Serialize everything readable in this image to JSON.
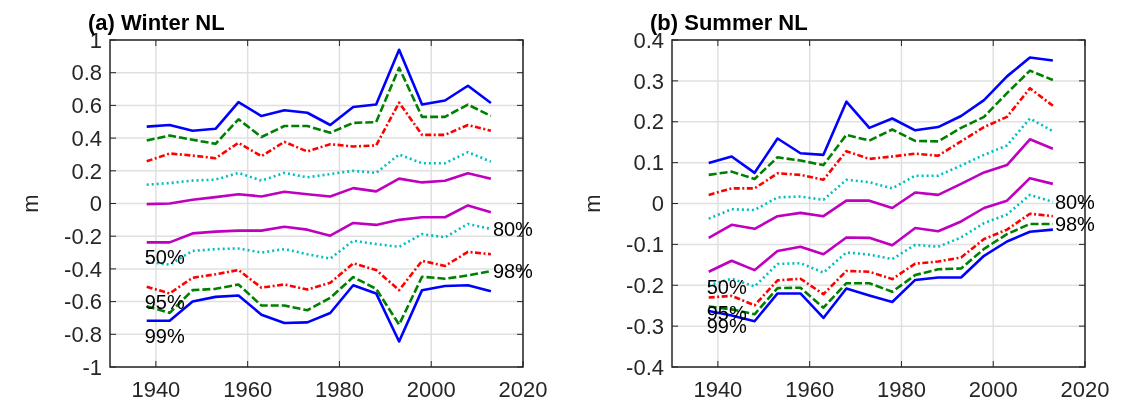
{
  "chart_data": [
    {
      "type": "line",
      "title": "(a) Winter NL",
      "ylabel": "m",
      "x": [
        1938,
        1943,
        1948,
        1953,
        1958,
        1963,
        1968,
        1973,
        1978,
        1983,
        1988,
        1993,
        1998,
        2003,
        2008,
        2013
      ],
      "xlim": [
        1930,
        2020
      ],
      "xticks": [
        1940,
        1960,
        1980,
        2000,
        2020
      ],
      "ylim": [
        -1,
        1
      ],
      "yticks": [
        -1,
        -0.8,
        -0.6,
        -0.4,
        -0.2,
        0,
        0.2,
        0.4,
        0.6,
        0.8,
        1
      ],
      "grid": true,
      "series": [
        {
          "color": "#0000ff",
          "line_style": "solid",
          "values": [
            0.47,
            0.48,
            0.445,
            0.457,
            0.62,
            0.535,
            0.57,
            0.555,
            0.48,
            0.59,
            0.605,
            0.94,
            0.605,
            0.63,
            0.72,
            0.615
          ]
        },
        {
          "color": "#008000",
          "line_style": "dashed",
          "values": [
            0.385,
            0.416,
            0.39,
            0.365,
            0.515,
            0.407,
            0.474,
            0.474,
            0.433,
            0.493,
            0.498,
            0.83,
            0.53,
            0.53,
            0.605,
            0.535
          ]
        },
        {
          "color": "#ff0000",
          "line_style": "dashdot",
          "values": [
            0.258,
            0.306,
            0.293,
            0.277,
            0.371,
            0.289,
            0.377,
            0.318,
            0.363,
            0.349,
            0.355,
            0.617,
            0.42,
            0.42,
            0.48,
            0.445
          ]
        },
        {
          "color": "#00bfbf",
          "line_style": "dotted",
          "values": [
            0.115,
            0.125,
            0.14,
            0.146,
            0.187,
            0.14,
            0.187,
            0.16,
            0.18,
            0.2,
            0.187,
            0.3,
            0.246,
            0.246,
            0.314,
            0.256
          ]
        },
        {
          "color": "#bf00bf",
          "line_style": "solid",
          "values": [
            -0.004,
            0,
            0.023,
            0.039,
            0.057,
            0.043,
            0.072,
            0.057,
            0.043,
            0.094,
            0.074,
            0.152,
            0.129,
            0.139,
            0.185,
            0.152
          ]
        },
        {
          "name": "50%",
          "color": "#bf00bf",
          "line_style": "solid",
          "values": [
            -0.238,
            -0.238,
            -0.183,
            -0.172,
            -0.166,
            -0.166,
            -0.142,
            -0.16,
            -0.197,
            -0.119,
            -0.131,
            -0.1,
            -0.084,
            -0.084,
            -0.012,
            -0.053
          ]
        },
        {
          "name": "80%",
          "color": "#00bfbf",
          "line_style": "dotted",
          "values": [
            -0.357,
            -0.374,
            -0.29,
            -0.279,
            -0.275,
            -0.3,
            -0.279,
            -0.31,
            -0.337,
            -0.228,
            -0.248,
            -0.265,
            -0.187,
            -0.207,
            -0.125,
            -0.156
          ]
        },
        {
          "name": "95%",
          "color": "#ff0000",
          "line_style": "dashdot",
          "values": [
            -0.509,
            -0.55,
            -0.454,
            -0.433,
            -0.407,
            -0.515,
            -0.495,
            -0.526,
            -0.485,
            -0.366,
            -0.407,
            -0.53,
            -0.351,
            -0.382,
            -0.296,
            -0.31
          ]
        },
        {
          "name": "98%",
          "color": "#008000",
          "line_style": "dashed",
          "values": [
            -0.628,
            -0.669,
            -0.53,
            -0.522,
            -0.495,
            -0.624,
            -0.624,
            -0.653,
            -0.577,
            -0.45,
            -0.522,
            -0.741,
            -0.448,
            -0.46,
            -0.44,
            -0.413
          ]
        },
        {
          "name": "99%",
          "color": "#0000ff",
          "line_style": "solid",
          "values": [
            -0.717,
            -0.717,
            -0.6,
            -0.571,
            -0.563,
            -0.68,
            -0.731,
            -0.727,
            -0.67,
            -0.5,
            -0.55,
            -0.844,
            -0.53,
            -0.505,
            -0.5,
            -0.536
          ]
        }
      ]
    },
    {
      "type": "line",
      "title": "(b) Summer NL",
      "ylabel": "m",
      "x": [
        1938,
        1943,
        1948,
        1953,
        1958,
        1963,
        1968,
        1973,
        1978,
        1983,
        1988,
        1993,
        1998,
        2003,
        2008,
        2013
      ],
      "xlim": [
        1930,
        2020
      ],
      "xticks": [
        1940,
        1960,
        1980,
        2000,
        2020
      ],
      "ylim": [
        -0.4,
        0.4
      ],
      "yticks": [
        -0.4,
        -0.3,
        -0.2,
        -0.1,
        0,
        0.1,
        0.2,
        0.3,
        0.4
      ],
      "grid": true,
      "series": [
        {
          "color": "#0000ff",
          "line_style": "solid",
          "values": [
            0.099,
            0.115,
            0.075,
            0.159,
            0.123,
            0.119,
            0.249,
            0.185,
            0.208,
            0.179,
            0.187,
            0.214,
            0.253,
            0.311,
            0.357,
            0.35
          ]
        },
        {
          "color": "#008000",
          "line_style": "dashed",
          "values": [
            0.07,
            0.078,
            0.06,
            0.113,
            0.105,
            0.094,
            0.168,
            0.154,
            0.181,
            0.153,
            0.152,
            0.185,
            0.212,
            0.27,
            0.325,
            0.302
          ]
        },
        {
          "color": "#ff0000",
          "line_style": "dashdot",
          "values": [
            0.021,
            0.037,
            0.037,
            0.074,
            0.07,
            0.058,
            0.128,
            0.109,
            0.115,
            0.122,
            0.117,
            0.152,
            0.187,
            0.212,
            0.282,
            0.239
          ]
        },
        {
          "color": "#00bfbf",
          "line_style": "dotted",
          "values": [
            -0.037,
            -0.014,
            -0.016,
            0.015,
            0.017,
            0.009,
            0.058,
            0.052,
            0.037,
            0.068,
            0.068,
            0.093,
            0.119,
            0.142,
            0.208,
            0.177
          ]
        },
        {
          "color": "#bf00bf",
          "line_style": "solid",
          "values": [
            -0.084,
            -0.052,
            -0.062,
            -0.031,
            -0.023,
            -0.031,
            0.007,
            0.007,
            -0.011,
            0.027,
            0.021,
            0.048,
            0.076,
            0.094,
            0.157,
            0.134
          ]
        },
        {
          "name": "50%",
          "color": "#bf00bf",
          "line_style": "solid",
          "values": [
            -0.167,
            -0.14,
            -0.163,
            -0.116,
            -0.106,
            -0.124,
            -0.083,
            -0.084,
            -0.102,
            -0.06,
            -0.068,
            -0.044,
            -0.011,
            0.007,
            0.062,
            0.048
          ]
        },
        {
          "name": "80%",
          "color": "#00bfbf",
          "line_style": "dotted",
          "values": [
            -0.2,
            -0.184,
            -0.203,
            -0.148,
            -0.146,
            -0.169,
            -0.12,
            -0.125,
            -0.136,
            -0.101,
            -0.106,
            -0.083,
            -0.048,
            -0.027,
            0.021,
            0.004
          ]
        },
        {
          "name": "95%",
          "color": "#ff0000",
          "line_style": "dashdot",
          "values": [
            -0.23,
            -0.226,
            -0.249,
            -0.188,
            -0.184,
            -0.222,
            -0.165,
            -0.167,
            -0.185,
            -0.147,
            -0.142,
            -0.132,
            -0.087,
            -0.064,
            -0.025,
            -0.031
          ]
        },
        {
          "name": "98%",
          "color": "#008000",
          "line_style": "dashed",
          "values": [
            -0.252,
            -0.259,
            -0.271,
            -0.207,
            -0.206,
            -0.255,
            -0.195,
            -0.195,
            -0.216,
            -0.175,
            -0.161,
            -0.159,
            -0.111,
            -0.075,
            -0.05,
            -0.05
          ]
        },
        {
          "name": "99%",
          "color": "#0000ff",
          "line_style": "solid",
          "values": [
            -0.263,
            -0.274,
            -0.288,
            -0.22,
            -0.22,
            -0.28,
            -0.208,
            -0.225,
            -0.241,
            -0.187,
            -0.181,
            -0.181,
            -0.128,
            -0.093,
            -0.069,
            -0.064
          ]
        }
      ]
    }
  ]
}
